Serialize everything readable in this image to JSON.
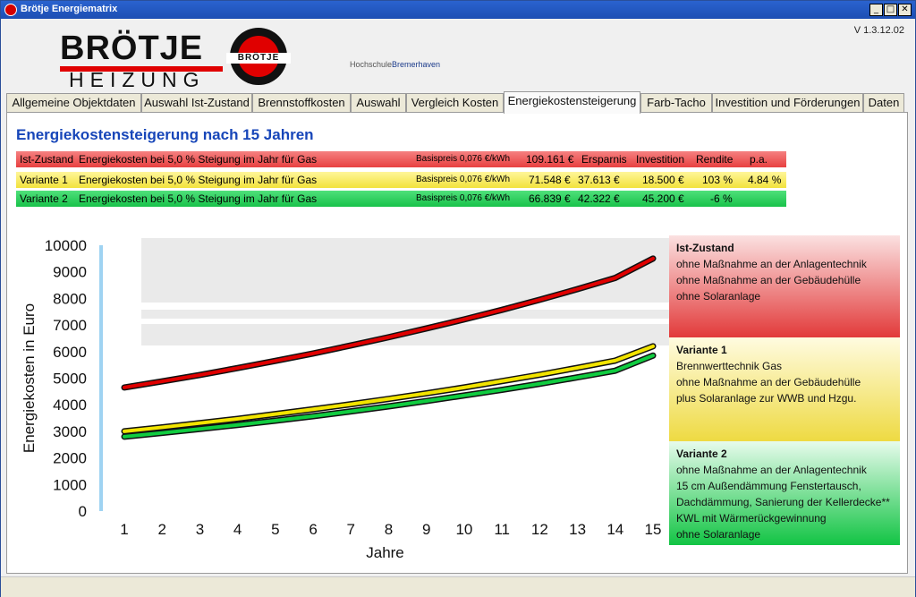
{
  "window": {
    "title": "Brötje Energiematrix",
    "version": "V 1.3.12.02",
    "buttons": {
      "minimize": "_",
      "maximize": "□",
      "close": "✕"
    }
  },
  "logo": {
    "word1": "BRÖTJE",
    "word2": "HEIZUNG",
    "disc_text": "BRÖTJE",
    "partner_prefix": "Hochschule",
    "partner_name": "Bremerhaven"
  },
  "tabs": [
    {
      "label": "Allgemeine Objektdaten",
      "active": false
    },
    {
      "label": "Auswahl Ist-Zustand",
      "active": false
    },
    {
      "label": "Brennstoffkosten",
      "active": false
    },
    {
      "label": "Auswahl",
      "active": false
    },
    {
      "label": "Vergleich Kosten",
      "active": false
    },
    {
      "label": "Energiekostensteigerung",
      "active": true
    },
    {
      "label": "Farb-Tacho",
      "active": false
    },
    {
      "label": "Investition und Förderungen",
      "active": false
    },
    {
      "label": "Daten",
      "active": false
    }
  ],
  "main": {
    "heading": "Energiekostensteigerung nach 15 Jahren",
    "rows": [
      {
        "name": "Ist-Zustand",
        "desc": "Energiekosten bei 5,0 % Steigung im Jahr für Gas",
        "base": "Basispreis 0,076 €/kWh",
        "cost": "109.161 €",
        "savings": "Ersparnis",
        "investment": "Investition",
        "return": "Rendite",
        "pa": "p.a.",
        "color": "#e84040"
      },
      {
        "name": "Variante 1",
        "desc": "Energiekosten bei 5,0 % Steigung im Jahr für Gas",
        "base": "Basispreis 0,076 €/kWh",
        "cost": "71.548 €",
        "savings": "37.613 €",
        "investment": "18.500 €",
        "return": "103 %",
        "pa": "4.84 %",
        "color": "#f2e23c"
      },
      {
        "name": "Variante 2",
        "desc": "Energiekosten bei 5,0 % Steigung im Jahr für Gas",
        "base": "Basispreis 0,076 €/kWh",
        "cost": "66.839 €",
        "savings": "42.322 €",
        "investment": "45.200 €",
        "return": "-6 %",
        "pa": "",
        "color": "#18c24a"
      }
    ]
  },
  "legend": [
    {
      "title": "Ist-Zustand",
      "lines": [
        "ohne Maßnahme an der Anlagentechnik",
        "ohne Maßnahme an der Gebäudehülle",
        "ohne Solaranlage"
      ]
    },
    {
      "title": "Variante 1",
      "lines": [
        "Brennwerttechnik Gas",
        "ohne Maßnahme an der Gebäudehülle",
        "plus Solaranlage zur WWB und Hzgu."
      ]
    },
    {
      "title": "Variante 2",
      "lines": [
        "ohne Maßnahme an der Anlagentechnik",
        "15 cm Außendämmung Fenstertausch,",
        "Dachdämmung, Sanierung der Kellerdecke**",
        "KWL mit Wärmerückgewinnung",
        "ohne Solaranlage"
      ]
    }
  ],
  "chart_data": {
    "type": "line",
    "xlabel": "Jahre",
    "ylabel": "Energiekosten in Euro",
    "x": [
      1,
      2,
      3,
      4,
      5,
      6,
      7,
      8,
      9,
      10,
      11,
      12,
      13,
      14,
      15
    ],
    "ylim": [
      0,
      10000
    ],
    "yticks": [
      0,
      1000,
      2000,
      3000,
      4000,
      5000,
      6000,
      7000,
      8000,
      9000,
      10000
    ],
    "grid": false,
    "series": [
      {
        "name": "Ist-Zustand",
        "color": "#e00000",
        "values": [
          4650,
          4880,
          5120,
          5380,
          5650,
          5930,
          6230,
          6540,
          6870,
          7210,
          7570,
          7950,
          8350,
          8770,
          9500
        ]
      },
      {
        "name": "Variante 1",
        "color": "#f2e400",
        "values": [
          3000,
          3150,
          3310,
          3470,
          3650,
          3830,
          4020,
          4220,
          4430,
          4650,
          4890,
          5130,
          5390,
          5660,
          6200
        ]
      },
      {
        "name": "Variante 2",
        "color": "#10cc40",
        "values": [
          2800,
          2940,
          3090,
          3240,
          3400,
          3570,
          3750,
          3940,
          4140,
          4350,
          4560,
          4790,
          5030,
          5280,
          5850
        ]
      }
    ]
  }
}
